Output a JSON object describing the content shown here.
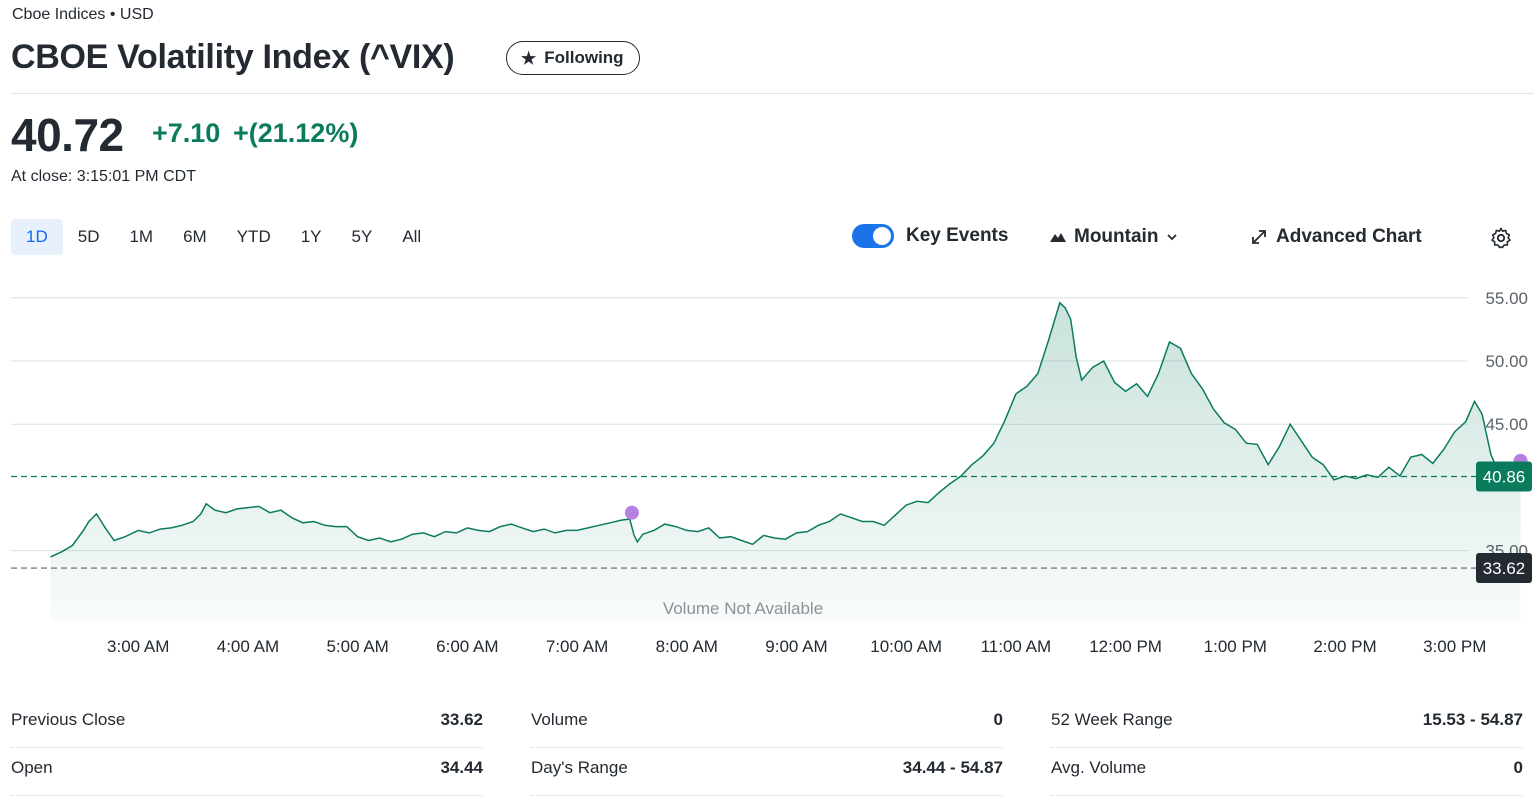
{
  "header": {
    "exchange": "Cboe Indices • USD",
    "title": "CBOE Volatility Index (^VIX)",
    "follow_label": "Following",
    "price": "40.72",
    "change": "+7.10",
    "change_pct": "+(21.12%)",
    "close_time": "At close: 3:15:01 PM CDT"
  },
  "toolbar": {
    "ranges": [
      "1D",
      "5D",
      "1M",
      "6M",
      "YTD",
      "1Y",
      "5Y",
      "All"
    ],
    "active_range": "1D",
    "key_events_label": "Key Events",
    "key_events_on": true,
    "chart_type_label": "Mountain",
    "advanced_label": "Advanced Chart"
  },
  "chart_data": {
    "type": "area",
    "y_ticks": [
      "55.00",
      "50.00",
      "45.00",
      "35.00"
    ],
    "y_tick_values": [
      55,
      50,
      45,
      35
    ],
    "ylim": [
      32.2,
      55.3
    ],
    "x_ticks": [
      "3:00 AM",
      "4:00 AM",
      "5:00 AM",
      "6:00 AM",
      "7:00 AM",
      "8:00 AM",
      "9:00 AM",
      "10:00 AM",
      "11:00 AM",
      "12:00 PM",
      "1:00 PM",
      "2:00 PM",
      "3:00 PM"
    ],
    "x_tick_hours": [
      3,
      4,
      5,
      6,
      7,
      8,
      9,
      10,
      11,
      12,
      13,
      14,
      15
    ],
    "xlim_hours": [
      1.74,
      15.75
    ],
    "current_label": "40.86",
    "current_value": 40.86,
    "prev_close_label": "33.62",
    "prev_close_value": 33.62,
    "volume_note": "Volume Not Available",
    "series": [
      {
        "name": "^VIX",
        "points": [
          [
            2.2,
            34.5
          ],
          [
            2.3,
            34.9
          ],
          [
            2.4,
            35.4
          ],
          [
            2.5,
            36.6
          ],
          [
            2.55,
            37.3
          ],
          [
            2.62,
            37.9
          ],
          [
            2.7,
            36.8
          ],
          [
            2.78,
            35.8
          ],
          [
            2.88,
            36.1
          ],
          [
            3.0,
            36.6
          ],
          [
            3.1,
            36.4
          ],
          [
            3.2,
            36.7
          ],
          [
            3.3,
            36.8
          ],
          [
            3.4,
            37.0
          ],
          [
            3.5,
            37.3
          ],
          [
            3.57,
            37.9
          ],
          [
            3.62,
            38.7
          ],
          [
            3.7,
            38.2
          ],
          [
            3.8,
            38.0
          ],
          [
            3.9,
            38.3
          ],
          [
            4.0,
            38.4
          ],
          [
            4.1,
            38.5
          ],
          [
            4.2,
            38.0
          ],
          [
            4.3,
            38.2
          ],
          [
            4.4,
            37.6
          ],
          [
            4.5,
            37.2
          ],
          [
            4.6,
            37.3
          ],
          [
            4.7,
            37.0
          ],
          [
            4.8,
            36.9
          ],
          [
            4.9,
            36.9
          ],
          [
            5.0,
            36.1
          ],
          [
            5.1,
            35.8
          ],
          [
            5.2,
            36.0
          ],
          [
            5.3,
            35.7
          ],
          [
            5.4,
            35.9
          ],
          [
            5.5,
            36.3
          ],
          [
            5.6,
            36.4
          ],
          [
            5.7,
            36.1
          ],
          [
            5.8,
            36.5
          ],
          [
            5.9,
            36.4
          ],
          [
            6.0,
            36.8
          ],
          [
            6.1,
            36.6
          ],
          [
            6.2,
            36.5
          ],
          [
            6.3,
            36.9
          ],
          [
            6.4,
            37.1
          ],
          [
            6.5,
            36.8
          ],
          [
            6.6,
            36.5
          ],
          [
            6.7,
            36.7
          ],
          [
            6.8,
            36.4
          ],
          [
            6.9,
            36.6
          ],
          [
            7.0,
            36.6
          ],
          [
            7.1,
            36.8
          ],
          [
            7.2,
            37.0
          ],
          [
            7.3,
            37.2
          ],
          [
            7.4,
            37.4
          ],
          [
            7.48,
            37.5
          ],
          [
            7.52,
            36.2
          ],
          [
            7.55,
            35.7
          ],
          [
            7.6,
            36.3
          ],
          [
            7.7,
            36.6
          ],
          [
            7.8,
            37.1
          ],
          [
            7.9,
            36.9
          ],
          [
            8.0,
            36.6
          ],
          [
            8.1,
            36.5
          ],
          [
            8.2,
            36.8
          ],
          [
            8.3,
            36.0
          ],
          [
            8.4,
            36.1
          ],
          [
            8.5,
            35.8
          ],
          [
            8.6,
            35.5
          ],
          [
            8.7,
            36.2
          ],
          [
            8.8,
            36.0
          ],
          [
            8.9,
            35.9
          ],
          [
            9.0,
            36.4
          ],
          [
            9.1,
            36.5
          ],
          [
            9.2,
            37.0
          ],
          [
            9.3,
            37.3
          ],
          [
            9.4,
            37.9
          ],
          [
            9.5,
            37.6
          ],
          [
            9.6,
            37.3
          ],
          [
            9.7,
            37.3
          ],
          [
            9.8,
            37.0
          ],
          [
            9.9,
            37.8
          ],
          [
            10.0,
            38.6
          ],
          [
            10.1,
            38.9
          ],
          [
            10.2,
            38.8
          ],
          [
            10.3,
            39.6
          ],
          [
            10.4,
            40.3
          ],
          [
            10.5,
            40.9
          ],
          [
            10.6,
            41.8
          ],
          [
            10.7,
            42.5
          ],
          [
            10.8,
            43.5
          ],
          [
            10.9,
            45.3
          ],
          [
            11.0,
            47.4
          ],
          [
            11.1,
            48.0
          ],
          [
            11.2,
            49.0
          ],
          [
            11.3,
            51.7
          ],
          [
            11.4,
            54.6
          ],
          [
            11.45,
            54.2
          ],
          [
            11.5,
            53.3
          ],
          [
            11.55,
            50.3
          ],
          [
            11.6,
            48.5
          ],
          [
            11.7,
            49.5
          ],
          [
            11.8,
            50.0
          ],
          [
            11.9,
            48.3
          ],
          [
            12.0,
            47.6
          ],
          [
            12.1,
            48.2
          ],
          [
            12.2,
            47.2
          ],
          [
            12.3,
            49.0
          ],
          [
            12.4,
            51.5
          ],
          [
            12.5,
            51.0
          ],
          [
            12.6,
            49.0
          ],
          [
            12.7,
            47.8
          ],
          [
            12.8,
            46.2
          ],
          [
            12.9,
            45.1
          ],
          [
            13.0,
            44.6
          ],
          [
            13.1,
            43.5
          ],
          [
            13.2,
            43.4
          ],
          [
            13.3,
            41.8
          ],
          [
            13.4,
            43.2
          ],
          [
            13.5,
            45.0
          ],
          [
            13.6,
            43.7
          ],
          [
            13.7,
            42.4
          ],
          [
            13.8,
            41.8
          ],
          [
            13.9,
            40.6
          ],
          [
            14.0,
            40.9
          ],
          [
            14.1,
            40.7
          ],
          [
            14.2,
            41.0
          ],
          [
            14.3,
            40.8
          ],
          [
            14.4,
            41.6
          ],
          [
            14.5,
            40.9
          ],
          [
            14.6,
            42.4
          ],
          [
            14.7,
            42.6
          ],
          [
            14.8,
            41.9
          ],
          [
            14.9,
            43.0
          ],
          [
            15.0,
            44.4
          ],
          [
            15.1,
            45.2
          ],
          [
            15.18,
            46.8
          ],
          [
            15.25,
            45.8
          ],
          [
            15.33,
            42.6
          ],
          [
            15.4,
            41.2
          ],
          [
            15.45,
            40.3
          ],
          [
            15.5,
            40.6
          ],
          [
            15.55,
            40.8
          ],
          [
            15.6,
            40.86
          ]
        ]
      }
    ],
    "events": [
      {
        "hour": 7.5,
        "value": 38.0
      },
      {
        "hour": 15.6,
        "value": 42.1
      }
    ]
  },
  "stats": {
    "col1": [
      {
        "label": "Previous Close",
        "value": "33.62"
      },
      {
        "label": "Open",
        "value": "34.44"
      }
    ],
    "col2": [
      {
        "label": "Volume",
        "value": "0"
      },
      {
        "label": "Day's Range",
        "value": "34.44 - 54.87"
      }
    ],
    "col3": [
      {
        "label": "52 Week Range",
        "value": "15.53 - 54.87"
      },
      {
        "label": "Avg. Volume",
        "value": "0"
      }
    ]
  },
  "colors": {
    "line": "#0b7b5e",
    "positive": "#0b7b5e",
    "event": "#b67fe0",
    "accent": "#1a73e8",
    "prev_close_bg": "#232a31"
  }
}
